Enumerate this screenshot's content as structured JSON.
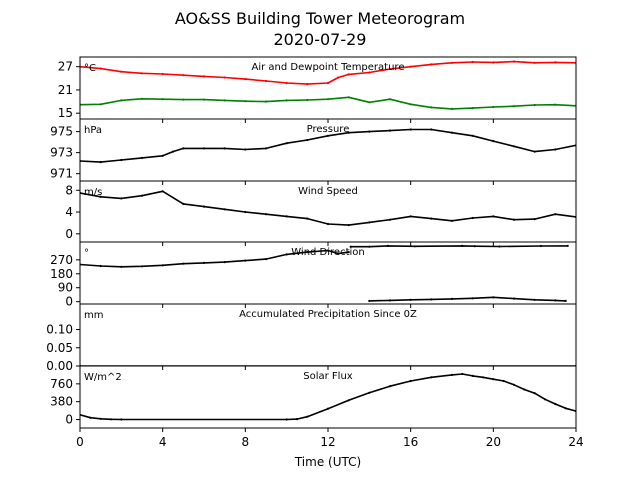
{
  "chart_data": {
    "type": "line",
    "title": "AO&SS Building Tower Meteorogram",
    "subtitle": "2020-07-29",
    "xlabel": "Time (UTC)",
    "x_ticks": [
      0,
      4,
      8,
      12,
      16,
      20,
      24
    ],
    "xlim": [
      0,
      24
    ],
    "panels": [
      {
        "name": "temperature",
        "title": "Air and Dewpoint Temperature",
        "unit": "°C",
        "ylim": [
          13.5,
          29.5
        ],
        "yticks": [
          15,
          21,
          27
        ],
        "series": [
          {
            "color": "#ff0000",
            "x": [
              0,
              1,
              2,
              3,
              4,
              5,
              6,
              7,
              8,
              9,
              10,
              11,
              12,
              12.5,
              13,
              14,
              15,
              16,
              17,
              18,
              19,
              20,
              21,
              22,
              23,
              24
            ],
            "y": [
              27,
              26.5,
              25.7,
              25.3,
              25.1,
              24.8,
              24.5,
              24.2,
              23.8,
              23.3,
              22.8,
              22.5,
              22.8,
              24.2,
              25,
              25.5,
              26.4,
              27,
              27.6,
              28,
              28.2,
              28.1,
              28.3,
              28,
              28.1,
              28
            ]
          },
          {
            "color": "#008000",
            "x": [
              0,
              1,
              2,
              3,
              4,
              5,
              6,
              7,
              8,
              9,
              10,
              11,
              12,
              13,
              14,
              15,
              16,
              17,
              18,
              19,
              20,
              21,
              22,
              23,
              24
            ],
            "y": [
              17.2,
              17.3,
              18.3,
              18.7,
              18.6,
              18.5,
              18.5,
              18.3,
              18.1,
              18,
              18.3,
              18.4,
              18.6,
              19.1,
              17.8,
              18.6,
              17.3,
              16.5,
              16.1,
              16.3,
              16.6,
              16.8,
              17.1,
              17.2,
              16.9
            ]
          }
        ]
      },
      {
        "name": "pressure",
        "title": "Pressure",
        "unit": "hPa",
        "ylim": [
          970.3,
          976.2
        ],
        "yticks": [
          971,
          973,
          975
        ],
        "series": [
          {
            "color": "#000000",
            "x": [
              0,
              1,
              2,
              3,
              4,
              4.5,
              5,
              6,
              7,
              8,
              9,
              10,
              11,
              12,
              13,
              14,
              15,
              16,
              17,
              18,
              19,
              20,
              21,
              22,
              23,
              24
            ],
            "y": [
              972.2,
              972.1,
              972.3,
              972.5,
              972.7,
              973.1,
              973.4,
              973.4,
              973.4,
              973.3,
              973.4,
              973.9,
              974.2,
              974.6,
              974.9,
              975.0,
              975.1,
              975.2,
              975.2,
              974.9,
              974.6,
              974.1,
              973.6,
              973.1,
              973.3,
              973.7
            ]
          }
        ]
      },
      {
        "name": "wind_speed",
        "title": "Wind Speed",
        "unit": "m/s",
        "ylim": [
          -1.5,
          9.7
        ],
        "yticks": [
          0,
          4,
          8
        ],
        "series": [
          {
            "color": "#000000",
            "x": [
              0,
              1,
              2,
              3,
              4,
              5,
              6,
              7,
              8,
              9,
              10,
              11,
              12,
              13,
              14,
              15,
              16,
              17,
              18,
              19,
              20,
              21,
              22,
              23,
              24
            ],
            "y": [
              7.5,
              6.8,
              6.5,
              7,
              7.8,
              5.5,
              5,
              4.5,
              4,
              3.6,
              3.2,
              2.8,
              1.8,
              1.6,
              2.1,
              2.6,
              3.2,
              2.8,
              2.4,
              2.9,
              3.2,
              2.6,
              2.7,
              3.6,
              3.1
            ]
          }
        ]
      },
      {
        "name": "wind_direction",
        "title": "Wind Direction",
        "unit": "°",
        "ylim": [
          -15,
          385
        ],
        "yticks": [
          0,
          90,
          180,
          270
        ],
        "series": [
          {
            "color": "#000000",
            "x": [
              0,
              1,
              2,
              3,
              4,
              5,
              6,
              7,
              8,
              9,
              10,
              11,
              12,
              12.5,
              13
            ],
            "y": [
              240,
              230,
              225,
              228,
              235,
              245,
              250,
              255,
              265,
              275,
              305,
              320,
              330,
              310,
              320
            ]
          },
          {
            "color": "#000000",
            "x": [
              14,
              15,
              16,
              17,
              18,
              19,
              20,
              21,
              22,
              23,
              23.5
            ],
            "y": [
              5,
              8,
              12,
              15,
              18,
              22,
              28,
              20,
              12,
              8,
              5
            ]
          },
          {
            "color": "#000000",
            "x": [
              13.1,
              14,
              14.9,
              16.2,
              18.5,
              19.1,
              20.3,
              22.3,
              23.6
            ],
            "y": [
              355,
              355,
              360,
              357,
              360,
              358,
              356,
              359,
              360
            ]
          }
        ]
      },
      {
        "name": "precipitation",
        "title": "Accumulated Precipitation Since 0Z",
        "unit": "mm",
        "ylim": [
          0,
          0.17
        ],
        "yticks": [
          0.0,
          0.05,
          0.1
        ],
        "ytick_labels": [
          "0.00",
          "0.05",
          "0.10"
        ],
        "series": [
          {
            "color": "#000000",
            "x": [
              0,
              24
            ],
            "y": [
              0,
              0
            ]
          }
        ]
      },
      {
        "name": "solar_flux",
        "title": "Solar Flux",
        "unit": "W/m^2",
        "ylim": [
          -180,
          1140
        ],
        "yticks": [
          0,
          380,
          760
        ],
        "series": [
          {
            "color": "#000000",
            "x": [
              0,
              0.5,
              1,
              1.5,
              2,
              10,
              10.5,
              11,
              12,
              13,
              14,
              15,
              16,
              17,
              18,
              18.5,
              19,
              19.5,
              20,
              20.5,
              21,
              21.5,
              22,
              22.5,
              23,
              23.5,
              24
            ],
            "y": [
              100,
              40,
              15,
              5,
              0,
              0,
              10,
              60,
              230,
              410,
              570,
              710,
              820,
              900,
              950,
              970,
              930,
              900,
              860,
              820,
              740,
              640,
              560,
              430,
              330,
              240,
              180
            ]
          }
        ]
      }
    ]
  }
}
